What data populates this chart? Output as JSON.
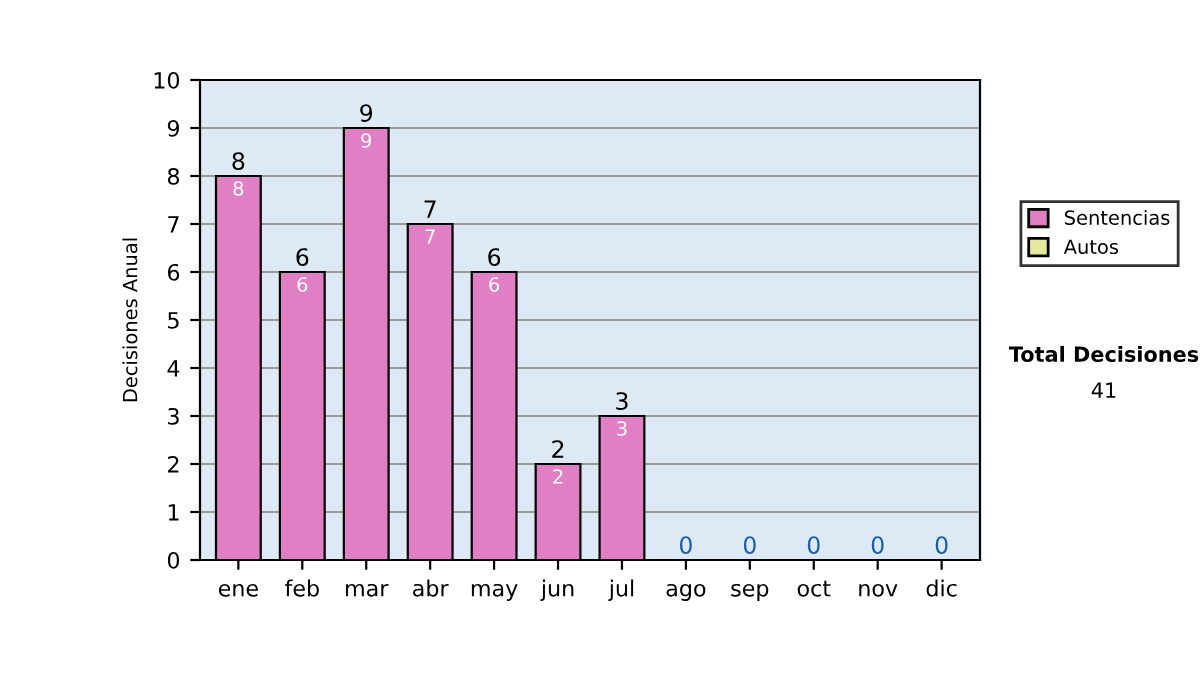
{
  "chart_data": {
    "type": "bar",
    "stacked": true,
    "ylabel": "Decisiones Anual",
    "categories": [
      "ene",
      "feb",
      "mar",
      "abr",
      "may",
      "jun",
      "jul",
      "ago",
      "sep",
      "oct",
      "nov",
      "dic"
    ],
    "series": [
      {
        "name": "Sentencias",
        "color": "#e07fc4",
        "values": [
          8,
          6,
          9,
          7,
          6,
          2,
          3,
          0,
          0,
          0,
          0,
          0
        ],
        "value_labels": [
          "8",
          "6",
          "9",
          "7",
          "6",
          "2",
          "3",
          null,
          null,
          null,
          null,
          null
        ]
      },
      {
        "name": "Autos",
        "color": "#e6e8a0",
        "values": [
          0,
          0,
          0,
          0,
          0,
          0,
          0,
          0,
          0,
          0,
          0,
          0
        ]
      }
    ],
    "totals": [
      "8",
      "6",
      "9",
      "7",
      "6",
      "2",
      "3",
      "0",
      "0",
      "0",
      "0",
      "0"
    ],
    "ylim": [
      0,
      10
    ],
    "yticks": [
      0,
      1,
      2,
      3,
      4,
      5,
      6,
      7,
      8,
      9,
      10
    ],
    "grid": "y",
    "legend": "right",
    "annotations": [
      "Total Decisiones",
      "41"
    ]
  }
}
